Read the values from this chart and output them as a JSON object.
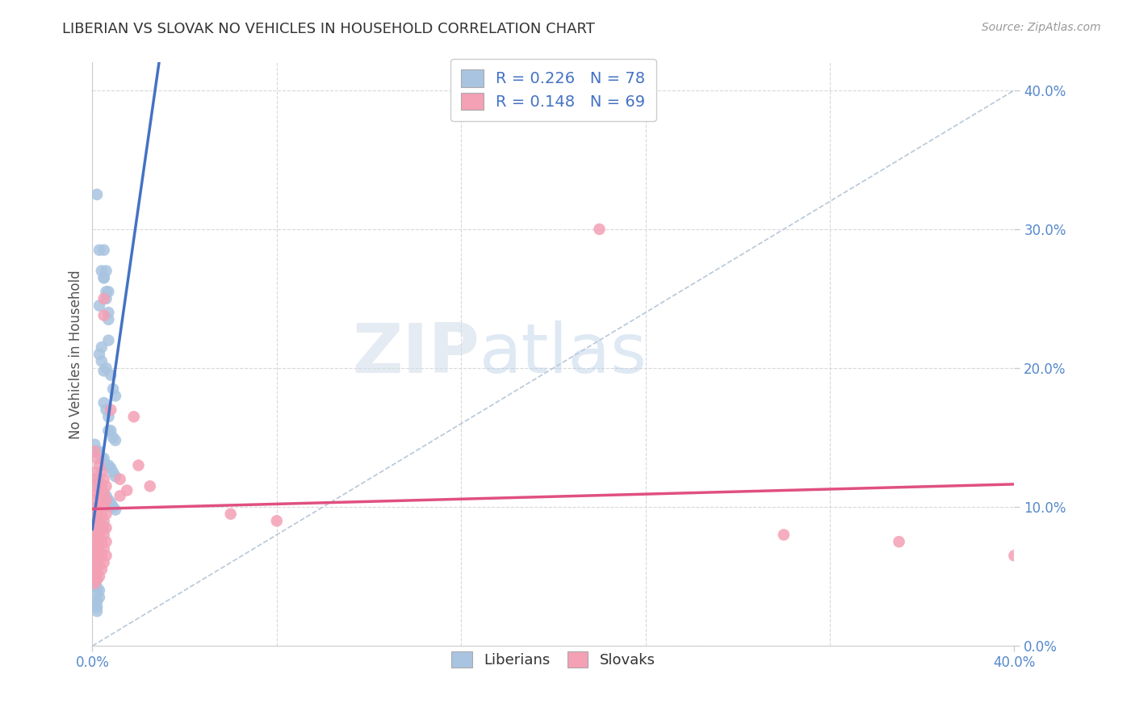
{
  "title": "LIBERIAN VS SLOVAK NO VEHICLES IN HOUSEHOLD CORRELATION CHART",
  "source_text": "Source: ZipAtlas.com",
  "ylabel": "No Vehicles in Household",
  "legend_line1": "R = 0.226   N = 78",
  "legend_line2": "R = 0.148   N = 69",
  "liberian_color": "#a8c4e0",
  "slovak_color": "#f4a0b5",
  "liberian_line_color": "#4472c4",
  "slovak_line_color": "#e05080",
  "watermark_zip": "ZIP",
  "watermark_atlas": "atlas",
  "background_color": "#ffffff",
  "grid_color": "#d8d8d8",
  "ref_line_color": "#b8c8d8",
  "xlim": [
    0.0,
    0.4
  ],
  "ylim": [
    0.0,
    0.42
  ],
  "yticks": [
    0.0,
    0.1,
    0.2,
    0.3,
    0.4
  ],
  "ytick_labels": [
    "0.0%",
    "10.0%",
    "20.0%",
    "30.0%",
    "40.0%"
  ],
  "liberian_scatter": [
    [
      0.002,
      0.325
    ],
    [
      0.003,
      0.285
    ],
    [
      0.004,
      0.27
    ],
    [
      0.005,
      0.285
    ],
    [
      0.005,
      0.265
    ],
    [
      0.006,
      0.27
    ],
    [
      0.006,
      0.25
    ],
    [
      0.007,
      0.255
    ],
    [
      0.007,
      0.24
    ],
    [
      0.003,
      0.245
    ],
    [
      0.005,
      0.265
    ],
    [
      0.006,
      0.255
    ],
    [
      0.004,
      0.215
    ],
    [
      0.007,
      0.235
    ],
    [
      0.007,
      0.22
    ],
    [
      0.003,
      0.21
    ],
    [
      0.004,
      0.205
    ],
    [
      0.005,
      0.198
    ],
    [
      0.006,
      0.2
    ],
    [
      0.008,
      0.195
    ],
    [
      0.009,
      0.185
    ],
    [
      0.01,
      0.18
    ],
    [
      0.005,
      0.175
    ],
    [
      0.006,
      0.17
    ],
    [
      0.007,
      0.165
    ],
    [
      0.007,
      0.155
    ],
    [
      0.008,
      0.155
    ],
    [
      0.009,
      0.15
    ],
    [
      0.01,
      0.148
    ],
    [
      0.001,
      0.145
    ],
    [
      0.002,
      0.14
    ],
    [
      0.003,
      0.14
    ],
    [
      0.004,
      0.135
    ],
    [
      0.005,
      0.135
    ],
    [
      0.006,
      0.13
    ],
    [
      0.007,
      0.13
    ],
    [
      0.008,
      0.128
    ],
    [
      0.009,
      0.125
    ],
    [
      0.01,
      0.122
    ],
    [
      0.001,
      0.12
    ],
    [
      0.002,
      0.118
    ],
    [
      0.003,
      0.115
    ],
    [
      0.004,
      0.112
    ],
    [
      0.005,
      0.11
    ],
    [
      0.006,
      0.108
    ],
    [
      0.007,
      0.105
    ],
    [
      0.008,
      0.103
    ],
    [
      0.009,
      0.1
    ],
    [
      0.01,
      0.098
    ],
    [
      0.001,
      0.095
    ],
    [
      0.002,
      0.092
    ],
    [
      0.003,
      0.09
    ],
    [
      0.004,
      0.088
    ],
    [
      0.005,
      0.085
    ],
    [
      0.001,
      0.082
    ],
    [
      0.002,
      0.08
    ],
    [
      0.003,
      0.078
    ],
    [
      0.001,
      0.075
    ],
    [
      0.002,
      0.072
    ],
    [
      0.003,
      0.07
    ],
    [
      0.001,
      0.068
    ],
    [
      0.002,
      0.065
    ],
    [
      0.001,
      0.062
    ],
    [
      0.002,
      0.06
    ],
    [
      0.001,
      0.058
    ],
    [
      0.001,
      0.055
    ],
    [
      0.002,
      0.052
    ],
    [
      0.001,
      0.05
    ],
    [
      0.002,
      0.048
    ],
    [
      0.001,
      0.045
    ],
    [
      0.002,
      0.042
    ],
    [
      0.003,
      0.04
    ],
    [
      0.002,
      0.038
    ],
    [
      0.003,
      0.035
    ],
    [
      0.002,
      0.032
    ],
    [
      0.001,
      0.03
    ],
    [
      0.002,
      0.028
    ],
    [
      0.002,
      0.025
    ]
  ],
  "slovak_scatter": [
    [
      0.001,
      0.14
    ],
    [
      0.001,
      0.125
    ],
    [
      0.001,
      0.115
    ],
    [
      0.001,
      0.105
    ],
    [
      0.001,
      0.098
    ],
    [
      0.001,
      0.09
    ],
    [
      0.001,
      0.082
    ],
    [
      0.001,
      0.075
    ],
    [
      0.001,
      0.068
    ],
    [
      0.001,
      0.06
    ],
    [
      0.001,
      0.052
    ],
    [
      0.001,
      0.045
    ],
    [
      0.002,
      0.135
    ],
    [
      0.002,
      0.12
    ],
    [
      0.002,
      0.11
    ],
    [
      0.002,
      0.1
    ],
    [
      0.002,
      0.092
    ],
    [
      0.002,
      0.085
    ],
    [
      0.002,
      0.078
    ],
    [
      0.002,
      0.07
    ],
    [
      0.002,
      0.062
    ],
    [
      0.002,
      0.055
    ],
    [
      0.002,
      0.048
    ],
    [
      0.003,
      0.13
    ],
    [
      0.003,
      0.118
    ],
    [
      0.003,
      0.108
    ],
    [
      0.003,
      0.098
    ],
    [
      0.003,
      0.088
    ],
    [
      0.003,
      0.08
    ],
    [
      0.003,
      0.072
    ],
    [
      0.003,
      0.065
    ],
    [
      0.003,
      0.058
    ],
    [
      0.003,
      0.05
    ],
    [
      0.004,
      0.125
    ],
    [
      0.004,
      0.115
    ],
    [
      0.004,
      0.105
    ],
    [
      0.004,
      0.095
    ],
    [
      0.004,
      0.085
    ],
    [
      0.004,
      0.075
    ],
    [
      0.004,
      0.065
    ],
    [
      0.004,
      0.055
    ],
    [
      0.005,
      0.25
    ],
    [
      0.005,
      0.238
    ],
    [
      0.005,
      0.12
    ],
    [
      0.005,
      0.11
    ],
    [
      0.005,
      0.1
    ],
    [
      0.005,
      0.09
    ],
    [
      0.005,
      0.08
    ],
    [
      0.005,
      0.07
    ],
    [
      0.005,
      0.06
    ],
    [
      0.006,
      0.115
    ],
    [
      0.006,
      0.105
    ],
    [
      0.006,
      0.095
    ],
    [
      0.006,
      0.085
    ],
    [
      0.006,
      0.075
    ],
    [
      0.006,
      0.065
    ],
    [
      0.008,
      0.17
    ],
    [
      0.012,
      0.12
    ],
    [
      0.012,
      0.108
    ],
    [
      0.015,
      0.112
    ],
    [
      0.018,
      0.165
    ],
    [
      0.02,
      0.13
    ],
    [
      0.025,
      0.115
    ],
    [
      0.06,
      0.095
    ],
    [
      0.08,
      0.09
    ],
    [
      0.22,
      0.3
    ],
    [
      0.3,
      0.08
    ],
    [
      0.35,
      0.075
    ],
    [
      0.4,
      0.065
    ]
  ]
}
